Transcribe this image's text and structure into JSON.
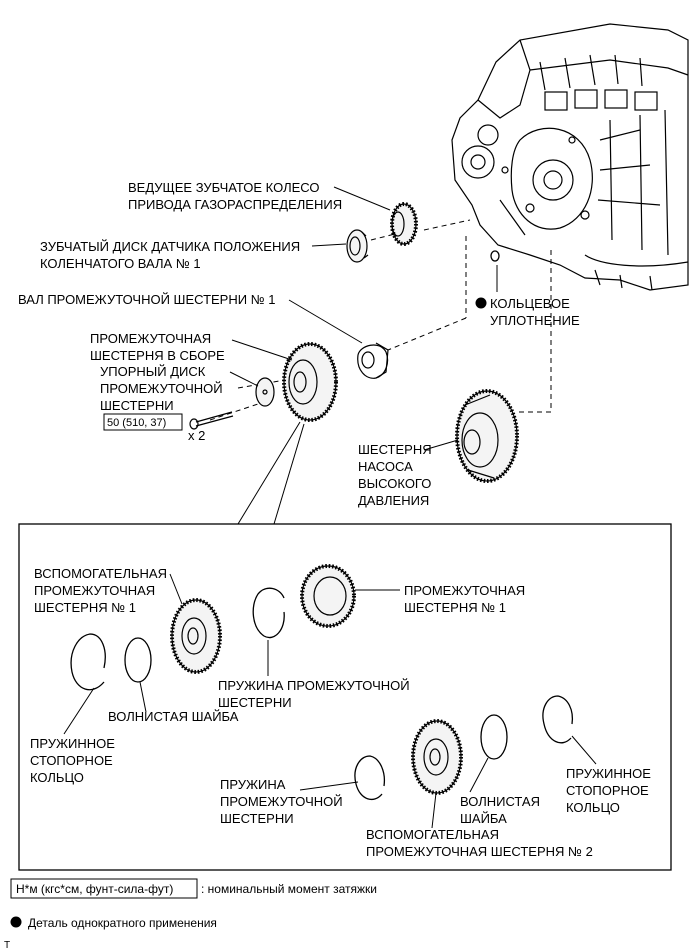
{
  "labels": {
    "drive_gear_1": "ВЕДУЩЕЕ ЗУБЧАТОЕ КОЛЕСО",
    "drive_gear_2": "ПРИВОДА ГАЗОРАСПРЕДЕЛЕНИЯ",
    "crank_disc_1": "ЗУБЧАТЫЙ ДИСК ДАТЧИКА ПОЛОЖЕНИЯ",
    "crank_disc_2": "КОЛЕНЧАТОГО ВАЛА № 1",
    "idler_shaft": "ВАЛ ПРОМЕЖУТОЧНОЙ ШЕСТЕРНИ № 1",
    "o_ring_1": "КОЛЬЦЕВОЕ",
    "o_ring_2": "УПЛОТНЕНИЕ",
    "idler_assy_1": "ПРОМЕЖУТОЧНАЯ",
    "idler_assy_2": "ШЕСТЕРНЯ В СБОРЕ",
    "thrust_1": "УПОРНЫЙ ДИСК",
    "thrust_2": "ПРОМЕЖУТОЧНОЙ",
    "thrust_3": "ШЕСТЕРНИ",
    "torque": "50 (510, 37)",
    "qty": "x 2",
    "pump_1": "ШЕСТЕРНЯ",
    "pump_2": "НАСОСА",
    "pump_3": "ВЫСОКОГО",
    "pump_4": "ДАВЛЕНИЯ",
    "sub1_1": "ВСПОМОГАТЕЛЬНАЯ",
    "sub1_2": "ПРОМЕЖУТОЧНАЯ",
    "sub1_3": "ШЕСТЕРНЯ № 1",
    "idler1_1": "ПРОМЕЖУТОЧНАЯ",
    "idler1_2": "ШЕСТЕРНЯ № 1",
    "spring1_1": "ПРУЖИНА ПРОМЕЖУТОЧНОЙ",
    "spring1_2": "ШЕСТЕРНИ",
    "wave1": "ВОЛНИСТАЯ ШАЙБА",
    "snap1_1": "ПРУЖИННОЕ",
    "snap1_2": "СТОПОРНОЕ",
    "snap1_3": "КОЛЬЦО",
    "spring2_1": "ПРУЖИНА",
    "spring2_2": "ПРОМЕЖУТОЧНОЙ",
    "spring2_3": "ШЕСТЕРНИ",
    "wave2_1": "ВОЛНИСТАЯ",
    "wave2_2": "ШАЙБА",
    "snap2_1": "ПРУЖИННОЕ",
    "snap2_2": "СТОПОРНОЕ",
    "snap2_3": "КОЛЬЦО",
    "sub2_1": "ВСПОМОГАТЕЛЬНАЯ",
    "sub2_2": "ПРОМЕЖУТОЧНАЯ ШЕСТЕРНЯ № 2"
  },
  "legend": {
    "torque_units": "Н*м (кгс*см, фунт-сила-фут)",
    "torque_desc": ": номинальный момент затяжки",
    "one_time": "Деталь однократного применения"
  },
  "corner_mark": "T"
}
